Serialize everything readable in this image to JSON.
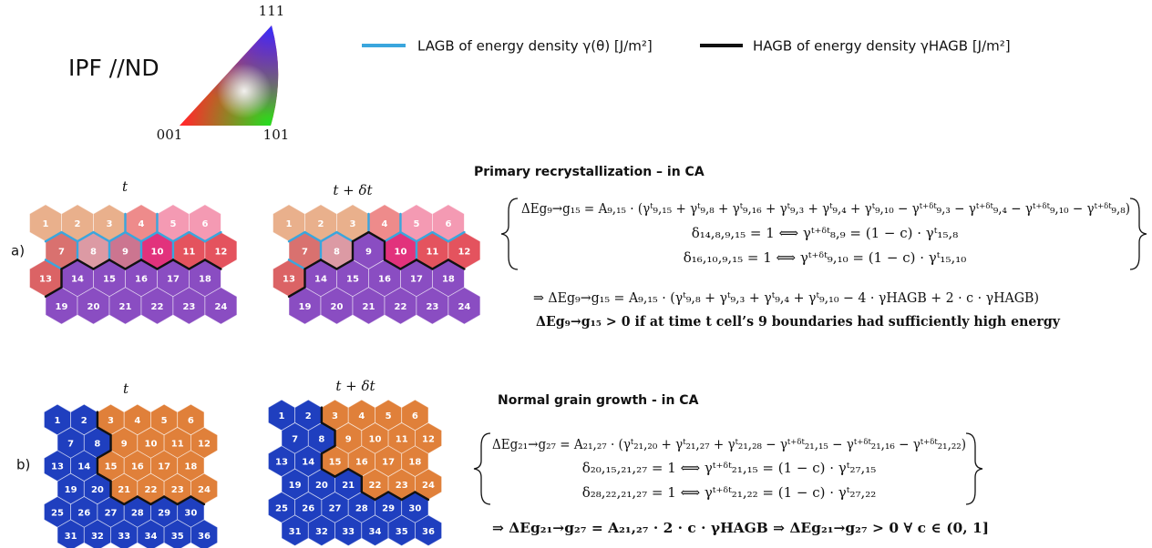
{
  "ipf": {
    "title": "IPF //ND",
    "corner_111": "111",
    "corner_001": "001",
    "corner_101": "101"
  },
  "legend": [
    {
      "label": "LAGB of energy density γ(θ) [J/m²]",
      "color": "#3aa6dd"
    },
    {
      "label": "HAGB of energy density γHAGB [J/m²]",
      "color": "#111111"
    }
  ],
  "panels": [
    {
      "label": "a)",
      "heading": "Primary recrystallization – in CA",
      "cells": [
        "1",
        "2",
        "3",
        "4",
        "5",
        "6",
        "7",
        "8",
        "9",
        "10",
        "11",
        "12",
        "13",
        "14",
        "15",
        "16",
        "17",
        "18",
        "19",
        "20",
        "21",
        "22",
        "23",
        "24"
      ],
      "grids": [
        {
          "time": "t",
          "colors": [
            "#e9b08c",
            "#e9b08c",
            "#e9b08c",
            "#ee8b8b",
            "#f49ab3",
            "#f49ab3",
            "#d9716f",
            "#dc9aa4",
            "#cc7590",
            "#e2327c",
            "#e4535e",
            "#e4535e",
            "#db6365",
            "#8a4dc2",
            "#8a4dc2",
            "#8a4dc2",
            "#8a4dc2",
            "#8a4dc2",
            "#8a4dc2",
            "#8a4dc2",
            "#8a4dc2",
            "#8a4dc2",
            "#8a4dc2",
            "#8a4dc2"
          ]
        },
        {
          "time": "t + δt",
          "colors": [
            "#e9b08c",
            "#e9b08c",
            "#e9b08c",
            "#ee8b8b",
            "#f49ab3",
            "#f49ab3",
            "#d9716f",
            "#dc9aa4",
            "#8a4dc2",
            "#e2327c",
            "#e4535e",
            "#e4535e",
            "#db6365",
            "#8a4dc2",
            "#8a4dc2",
            "#8a4dc2",
            "#8a4dc2",
            "#8a4dc2",
            "#8a4dc2",
            "#8a4dc2",
            "#8a4dc2",
            "#8a4dc2",
            "#8a4dc2",
            "#8a4dc2"
          ]
        }
      ],
      "equations": [
        "ΔEg₉→g₁₅ = A₉,₁₅ · (γᵗ₉,₁₅ + γᵗ₉,₈ + γᵗ₉,₁₆ + γᵗ₉,₃ + γᵗ₉,₄ + γᵗ₉,₁₀ − γᵗ⁺ᵟᵗ₉,₃ − γᵗ⁺ᵟᵗ₉,₄ − γᵗ⁺ᵟᵗ₉,₁₀ − γᵗ⁺ᵟᵗ₉,₈)",
        "δ₁₄,₈,₉,₁₅ = 1 ⟺ γᵗ⁺ᵟᵗ₈,₉ = (1 − c) · γᵗ₁₅,₈",
        "δ₁₆,₁₀,₉,₁₅ = 1 ⟺ γᵗ⁺ᵟᵗ₉,₁₀ = (1 − c) · γᵗ₁₅,₁₀"
      ],
      "conclusions": [
        "⇒ ΔEg₉→g₁₅ = A₉,₁₅ · (γᵗ₉,₈ + γᵗ₉,₃ + γᵗ₉,₄ + γᵗ₉,₁₀ − 4 · γHAGB + 2 · c · γHAGB)",
        "ΔEg₉→g₁₅ > 0 if at time t cell’s 9 boundaries had sufficiently high energy"
      ]
    },
    {
      "label": "b)",
      "heading": "Normal grain growth - in CA",
      "cells": [
        "1",
        "2",
        "3",
        "4",
        "5",
        "6",
        "7",
        "8",
        "9",
        "10",
        "11",
        "12",
        "13",
        "14",
        "15",
        "16",
        "17",
        "18",
        "19",
        "20",
        "21",
        "22",
        "23",
        "24",
        "25",
        "26",
        "27",
        "28",
        "29",
        "30",
        "31",
        "32",
        "33",
        "34",
        "35",
        "36"
      ],
      "grids": [
        {
          "time": "t",
          "colors": [
            "#1f3fbf",
            "#1f3fbf",
            "#e0803a",
            "#e0803a",
            "#e0803a",
            "#e0803a",
            "#1f3fbf",
            "#1f3fbf",
            "#e0803a",
            "#e0803a",
            "#e0803a",
            "#e0803a",
            "#1f3fbf",
            "#1f3fbf",
            "#e0803a",
            "#e0803a",
            "#e0803a",
            "#e0803a",
            "#1f3fbf",
            "#1f3fbf",
            "#e0803a",
            "#e0803a",
            "#e0803a",
            "#e0803a",
            "#1f3fbf",
            "#1f3fbf",
            "#1f3fbf",
            "#1f3fbf",
            "#1f3fbf",
            "#1f3fbf",
            "#1f3fbf",
            "#1f3fbf",
            "#1f3fbf",
            "#1f3fbf",
            "#1f3fbf",
            "#1f3fbf"
          ]
        },
        {
          "time": "t + δt",
          "colors": [
            "#1f3fbf",
            "#1f3fbf",
            "#e0803a",
            "#e0803a",
            "#e0803a",
            "#e0803a",
            "#1f3fbf",
            "#1f3fbf",
            "#e0803a",
            "#e0803a",
            "#e0803a",
            "#e0803a",
            "#1f3fbf",
            "#1f3fbf",
            "#e0803a",
            "#e0803a",
            "#e0803a",
            "#e0803a",
            "#1f3fbf",
            "#1f3fbf",
            "#1f3fbf",
            "#e0803a",
            "#e0803a",
            "#e0803a",
            "#1f3fbf",
            "#1f3fbf",
            "#1f3fbf",
            "#1f3fbf",
            "#1f3fbf",
            "#1f3fbf",
            "#1f3fbf",
            "#1f3fbf",
            "#1f3fbf",
            "#1f3fbf",
            "#1f3fbf",
            "#1f3fbf"
          ]
        }
      ],
      "equations": [
        "ΔEg₂₁→g₂₇ = A₂₁,₂₇ · (γᵗ₂₁,₂₀ + γᵗ₂₁,₂₇ + γᵗ₂₁,₂₈ − γᵗ⁺ᵟᵗ₂₁,₁₅ − γᵗ⁺ᵟᵗ₂₁,₁₆ − γᵗ⁺ᵟᵗ₂₁,₂₂)",
        "δ₂₀,₁₅,₂₁,₂₇ = 1 ⟺ γᵗ⁺ᵟᵗ₂₁,₁₅ = (1 − c) · γᵗ₂₇,₁₅",
        "δ₂₈,₂₂,₂₁,₂₇ = 1 ⟺ γᵗ⁺ᵟᵗ₂₁,₂₂ = (1 − c) · γᵗ₂₇,₂₂"
      ],
      "conclusions": [
        "⇒ ΔEg₂₁→g₂₇ = A₂₁,₂₇ · 2 · c · γHAGB ⇒ ΔEg₂₁→g₂₇ > 0 ∀ c ∈ (0, 1]"
      ]
    }
  ]
}
